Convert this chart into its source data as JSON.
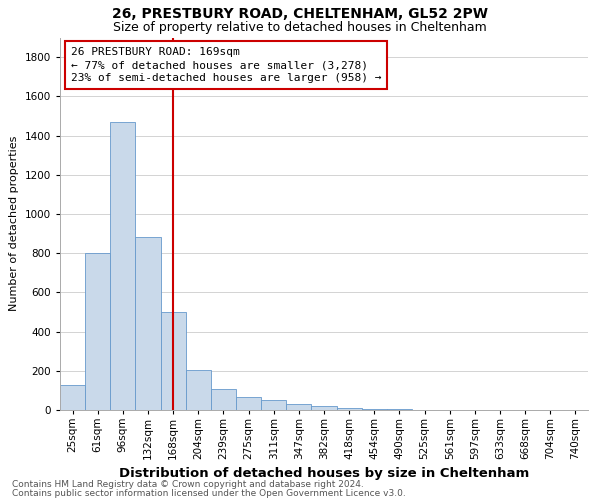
{
  "title1": "26, PRESTBURY ROAD, CHELTENHAM, GL52 2PW",
  "title2": "Size of property relative to detached houses in Cheltenham",
  "xlabel": "Distribution of detached houses by size in Cheltenham",
  "ylabel": "Number of detached properties",
  "footer1": "Contains HM Land Registry data © Crown copyright and database right 2024.",
  "footer2": "Contains public sector information licensed under the Open Government Licence v3.0.",
  "categories": [
    "25sqm",
    "61sqm",
    "96sqm",
    "132sqm",
    "168sqm",
    "204sqm",
    "239sqm",
    "275sqm",
    "311sqm",
    "347sqm",
    "382sqm",
    "418sqm",
    "454sqm",
    "490sqm",
    "525sqm",
    "561sqm",
    "597sqm",
    "633sqm",
    "668sqm",
    "704sqm",
    "740sqm"
  ],
  "values": [
    130,
    800,
    1470,
    880,
    500,
    205,
    105,
    65,
    50,
    30,
    20,
    10,
    5,
    3,
    2,
    2,
    1,
    1,
    1,
    1,
    1
  ],
  "bar_color": "#c9d9ea",
  "bar_edge_color": "#6699cc",
  "vline_index": 4.5,
  "vline_color": "#cc0000",
  "annotation_text": "26 PRESTBURY ROAD: 169sqm\n← 77% of detached houses are smaller (3,278)\n23% of semi-detached houses are larger (958) →",
  "annotation_box_facecolor": "#ffffff",
  "annotation_border_color": "#cc0000",
  "ylim": [
    0,
    1900
  ],
  "yticks": [
    0,
    200,
    400,
    600,
    800,
    1000,
    1200,
    1400,
    1600,
    1800
  ],
  "background_color": "#ffffff",
  "grid_color": "#cccccc",
  "title1_fontsize": 10,
  "title2_fontsize": 9,
  "xlabel_fontsize": 9.5,
  "ylabel_fontsize": 8,
  "tick_fontsize": 7.5,
  "annotation_fontsize": 8,
  "footer_fontsize": 6.5
}
